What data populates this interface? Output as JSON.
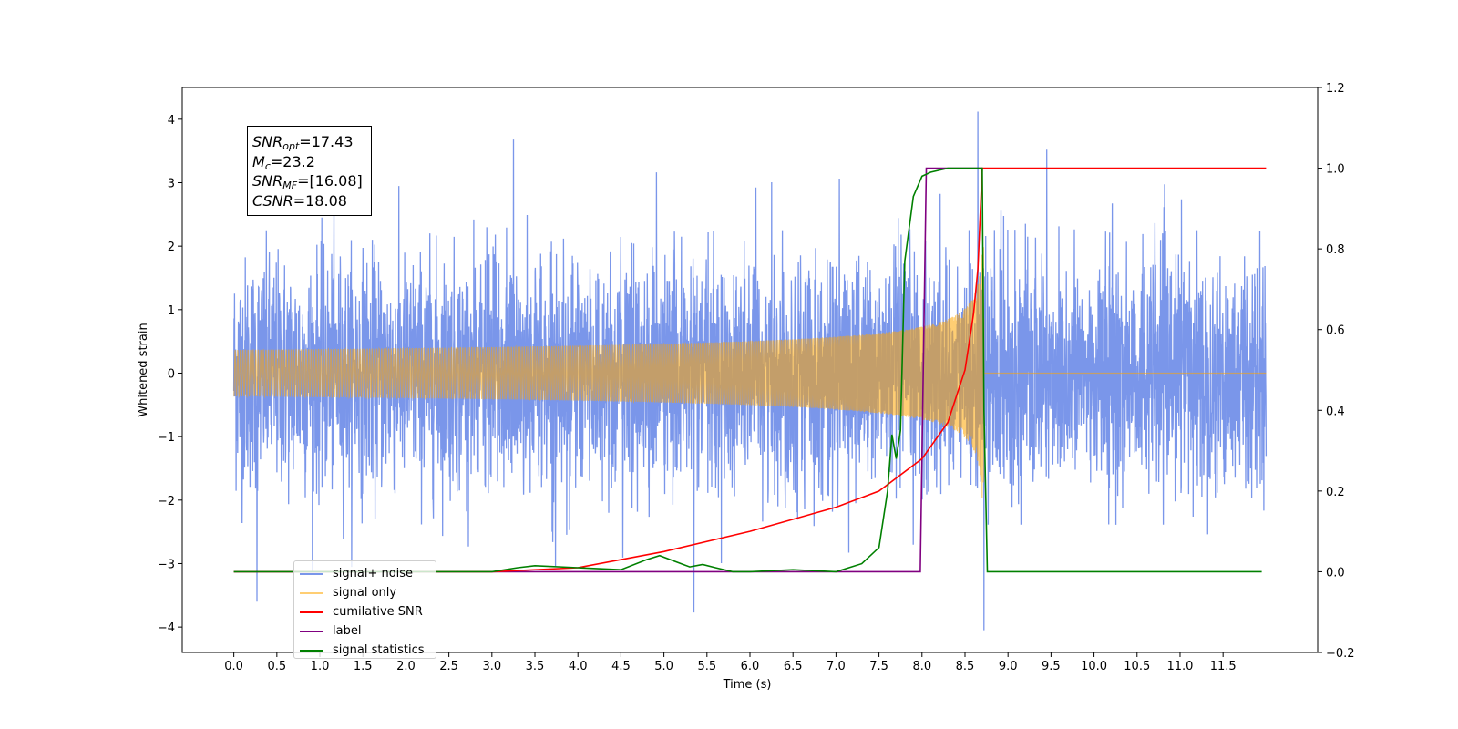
{
  "chart_data": {
    "type": "line",
    "title": "",
    "xlabel": "Time (s)",
    "ylabel": "Whitened strain",
    "xlim": [
      -0.6,
      12.6
    ],
    "ylim": [
      -4.4,
      4.5
    ],
    "y2lim": [
      -0.2,
      1.2
    ],
    "x_ticks": [
      "0.0",
      "0.5",
      "1.0",
      "1.5",
      "2.0",
      "2.5",
      "3.0",
      "3.5",
      "4.0",
      "4.5",
      "5.0",
      "5.5",
      "6.0",
      "6.5",
      "7.0",
      "7.5",
      "8.0",
      "8.5",
      "9.0",
      "9.5",
      "10.0",
      "10.5",
      "11.0",
      "11.5"
    ],
    "y_ticks": [
      "−4",
      "−3",
      "−2",
      "−1",
      "0",
      "1",
      "2",
      "3",
      "4"
    ],
    "y2_ticks": [
      "−0.2",
      "0.0",
      "0.2",
      "0.4",
      "0.6",
      "0.8",
      "1.0",
      "1.2"
    ],
    "legend_position": "lower-left",
    "annotation": [
      {
        "base": "SNR",
        "sub": "opt",
        "value": "=17.43"
      },
      {
        "base": "M",
        "sub": "c",
        "value": "=23.2"
      },
      {
        "base": "SNR",
        "sub": "MF",
        "value": "=[16.08]"
      },
      {
        "base": "CSNR",
        "sub": "",
        "value": "=18.08"
      }
    ],
    "series": [
      {
        "name": "signal+ noise",
        "color": "#4169e1",
        "axis": "left",
        "x_range": [
          0.0,
          12.0
        ],
        "noise_std": 0.9,
        "peaks": [
          [
            0.27,
            -3.6
          ],
          [
            3.25,
            3.68
          ],
          [
            5.35,
            -3.77
          ],
          [
            8.65,
            4.12
          ],
          [
            8.72,
            -4.05
          ],
          [
            9.45,
            3.52
          ]
        ]
      },
      {
        "name": "signal only",
        "color": "#ffa500",
        "axis": "left",
        "x_range": [
          0.0,
          12.0
        ],
        "chirp_end": 8.72,
        "peak_amplitude": 2.0
      },
      {
        "name": "cumilative SNR",
        "color": "#ff0000",
        "axis": "right",
        "x": [
          0.0,
          3.0,
          4.0,
          5.0,
          6.0,
          6.5,
          7.0,
          7.5,
          8.0,
          8.3,
          8.5,
          8.6,
          8.65,
          8.7,
          8.75,
          12.0
        ],
        "y": [
          0.0,
          0.0,
          0.01,
          0.05,
          0.1,
          0.13,
          0.16,
          0.2,
          0.28,
          0.37,
          0.5,
          0.64,
          0.75,
          1.0,
          1.0,
          1.0
        ]
      },
      {
        "name": "label",
        "color": "#800080",
        "axis": "right",
        "x": [
          0.0,
          7.98,
          8.05,
          8.7
        ],
        "y": [
          0.0,
          0.0,
          1.0,
          1.0
        ]
      },
      {
        "name": "signal statistics",
        "color": "#008000",
        "axis": "right",
        "x": [
          0.0,
          3.0,
          3.3,
          3.5,
          4.0,
          4.5,
          4.8,
          4.95,
          5.2,
          5.3,
          5.45,
          5.6,
          5.8,
          6.0,
          6.5,
          7.0,
          7.3,
          7.5,
          7.6,
          7.65,
          7.7,
          7.75,
          7.8,
          7.9,
          8.0,
          8.1,
          8.3,
          8.7,
          8.72,
          8.76,
          11.95
        ],
        "y": [
          0.0,
          0.0,
          0.01,
          0.015,
          0.01,
          0.005,
          0.03,
          0.04,
          0.02,
          0.012,
          0.018,
          0.01,
          0.0,
          0.0,
          0.005,
          0.0,
          0.02,
          0.06,
          0.2,
          0.34,
          0.28,
          0.35,
          0.77,
          0.93,
          0.98,
          0.99,
          1.0,
          1.0,
          0.4,
          0.0,
          0.0
        ]
      }
    ]
  }
}
